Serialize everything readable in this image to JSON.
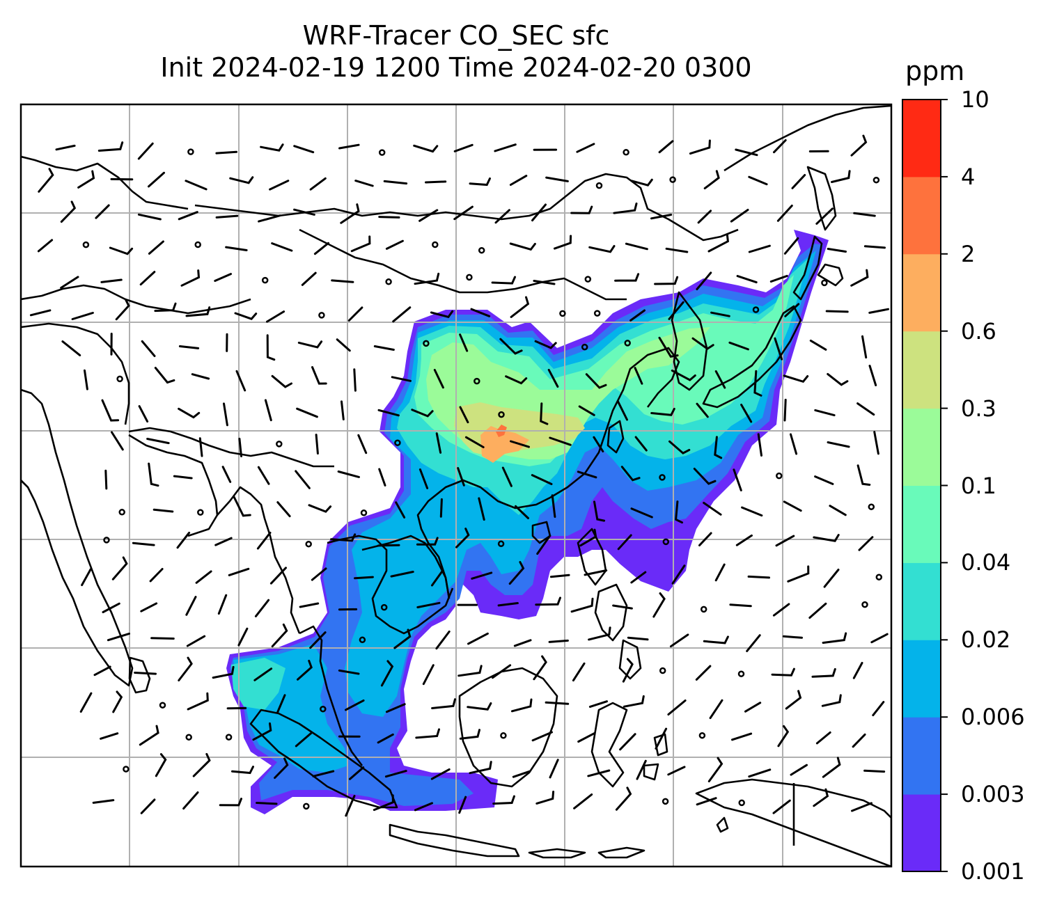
{
  "title_line1": "WRF-Tracer CO_SEC sfc",
  "title_line2": "Init 2024-02-19 1200 Time 2024-02-20 0300",
  "colorbar": {
    "units": "ppm",
    "levels": [
      "0.001",
      "0.003",
      "0.006",
      "0.02",
      "0.04",
      "0.1",
      "0.3",
      "0.6",
      "2",
      "4",
      "10"
    ],
    "colors": [
      "#6a2bf8",
      "#3274f2",
      "#04b3ea",
      "#33dfd2",
      "#69faba",
      "#9bfb99",
      "#cde27f",
      "#fdae5f",
      "#fe723d",
      "#ff2a14"
    ]
  },
  "map": {
    "background": "#ffffff",
    "coastline_color": "#000000",
    "gridline_color": "#b0b0b0",
    "barb_color": "#000000"
  }
}
